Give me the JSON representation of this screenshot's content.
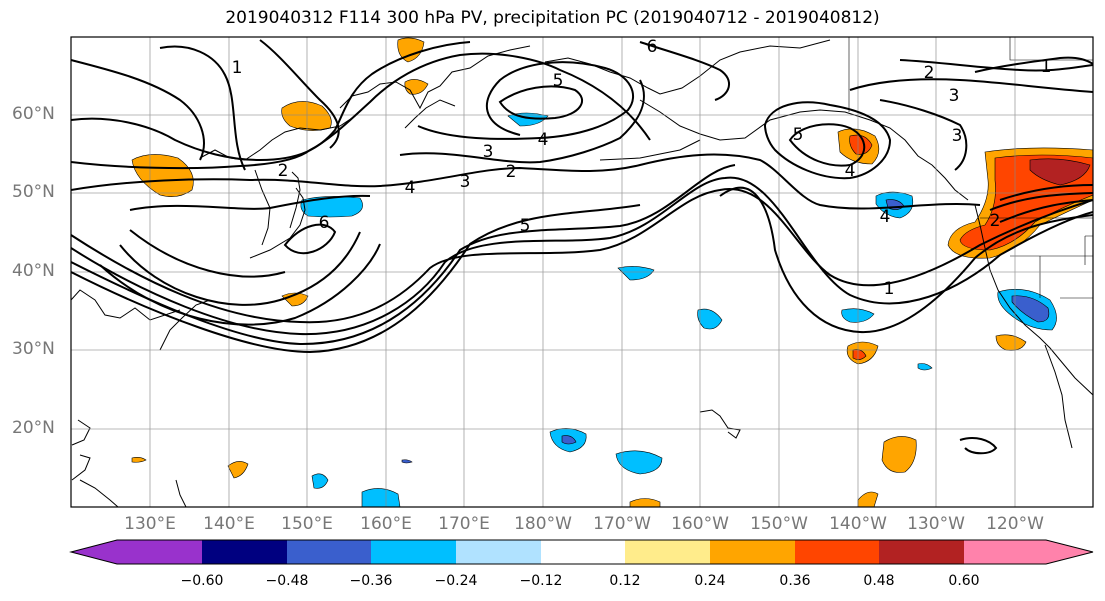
{
  "title": "2019040312 F114 300 hPa PV, precipitation PC (2019040712 - 2019040812)",
  "map": {
    "lat_labels": [
      "60°N",
      "50°N",
      "40°N",
      "30°N",
      "20°N"
    ],
    "lon_labels": [
      "130°E",
      "140°E",
      "150°E",
      "160°E",
      "170°E",
      "180°W",
      "170°W",
      "160°W",
      "150°W",
      "140°W",
      "130°W",
      "120°W"
    ],
    "contour_labels": [
      "1",
      "2",
      "3",
      "4",
      "5",
      "6"
    ]
  },
  "colorbar": {
    "ticks": [
      "−0.60",
      "−0.48",
      "−0.36",
      "−0.24",
      "−0.12",
      "0.12",
      "0.24",
      "0.36",
      "0.48",
      "0.60"
    ],
    "colors": [
      "#9932cc",
      "#000080",
      "#3a5fcd",
      "#00bfff",
      "#b0e2ff",
      "#ffffff",
      "#ffec8b",
      "#ffa500",
      "#ff4500",
      "#b22222",
      "#ff82ab"
    ]
  }
}
